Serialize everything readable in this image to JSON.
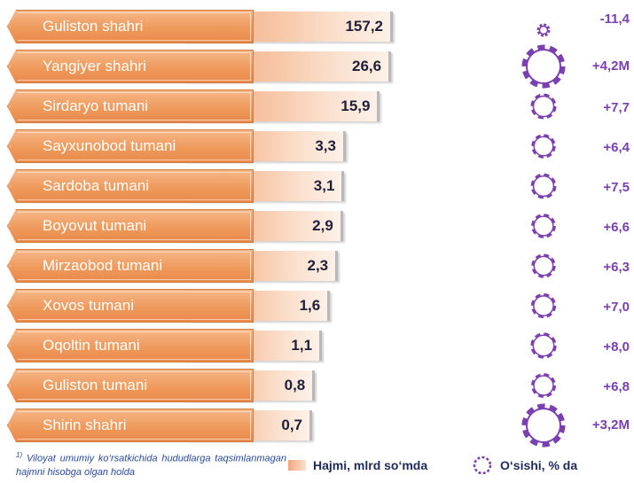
{
  "chart_data": {
    "type": "bar",
    "orientation": "horizontal",
    "categories": [
      "Guliston shahri",
      "Yangiyer shahri",
      "Sirdaryo tumani",
      "Sayxunobod tumani",
      "Sardoba tumani",
      "Boyovut tumani",
      "Mirzaobod tumani",
      "Xovos tumani",
      "Oqoltin tumani",
      "Guliston tumani",
      "Shirin shahri"
    ],
    "series": [
      {
        "name": "Hajmi, mlrd so‘mda",
        "values": [
          157.2,
          26.6,
          15.9,
          3.3,
          3.1,
          2.9,
          2.3,
          1.6,
          1.1,
          0.8,
          0.7
        ],
        "labels": [
          "157,2",
          "26,6",
          "15,9",
          "3,3",
          "3,1",
          "2,9",
          "2,3",
          "1,6",
          "1,1",
          "0,8",
          "0,7"
        ],
        "color": "#f2a77a"
      },
      {
        "name": "O‘sishi, % da",
        "values": [
          -11.4,
          4200000,
          7.7,
          6.4,
          7.5,
          6.6,
          6.3,
          7.0,
          8.0,
          6.8,
          3200000
        ],
        "labels": [
          "-11,4",
          "+4,2M",
          "+7,7",
          "+6,4",
          "+7,5",
          "+6,6",
          "+6,3",
          "+7,0",
          "+8,0",
          "+6,8",
          "+3,2M"
        ],
        "color": "#7a3fb0"
      }
    ],
    "legend": "bottom"
  },
  "footnote": {
    "marker": "1)",
    "text": "Viloyat umumiy ko‘rsatkichida hududlarga taqsimlanmagan hajmni hisobga olgan holda"
  },
  "legend": {
    "volume": "Hajmi, mlrd so‘mda",
    "growth": "O‘sishi, % da"
  },
  "colors": {
    "accent_purple": "#7a3fb0",
    "accent_orange": "#ef9a5c"
  }
}
